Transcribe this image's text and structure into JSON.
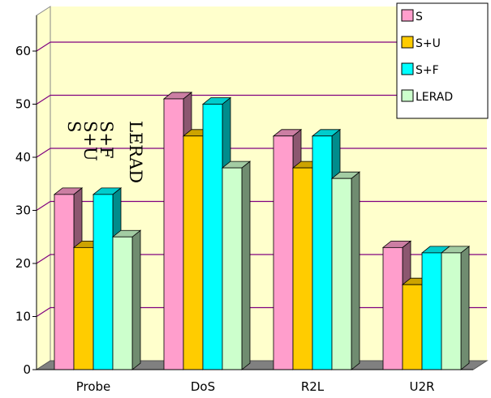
{
  "chart_data": {
    "type": "bar",
    "categories": [
      "Probe",
      "DoS",
      "R2L",
      "U2R"
    ],
    "series": [
      {
        "name": "S",
        "values": [
          33,
          51,
          44,
          23
        ],
        "color": "#ff9ecc"
      },
      {
        "name": "S+U",
        "values": [
          23,
          44,
          38,
          16
        ],
        "color": "#ffcc00"
      },
      {
        "name": "S+F",
        "values": [
          33,
          50,
          44,
          22
        ],
        "color": "#00ffff"
      },
      {
        "name": "LERAD",
        "values": [
          25,
          38,
          36,
          22
        ],
        "color": "#ccffcc"
      }
    ],
    "ylim": [
      0,
      60
    ],
    "yticks": [
      "0",
      "10",
      "20",
      "30",
      "40",
      "50",
      "60"
    ],
    "title": "",
    "xlabel": "",
    "ylabel": "",
    "grid": true,
    "legend_position": "top-right",
    "plot_background": "#ffffcc",
    "annotation": [
      "S",
      "S+U",
      "S+F",
      "LERAD"
    ]
  }
}
